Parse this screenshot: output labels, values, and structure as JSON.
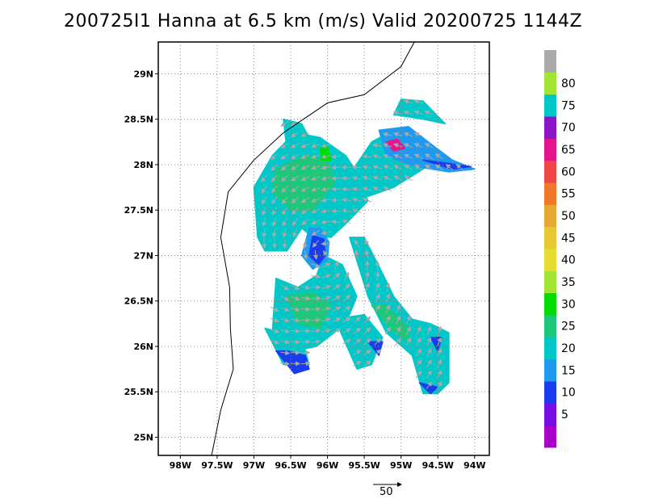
{
  "title": "200725I1 Hanna at 6.5 km (m/s) Valid 20200725 1144Z",
  "map": {
    "lon_range": [
      -98.3,
      -93.8
    ],
    "lat_range": [
      24.8,
      29.35
    ],
    "x_ticks": [
      {
        "lon": -98.0,
        "label": "98W"
      },
      {
        "lon": -97.5,
        "label": "97.5W"
      },
      {
        "lon": -97.0,
        "label": "97W"
      },
      {
        "lon": -96.5,
        "label": "96.5W"
      },
      {
        "lon": -96.0,
        "label": "96W"
      },
      {
        "lon": -95.5,
        "label": "95.5W"
      },
      {
        "lon": -95.0,
        "label": "95W"
      },
      {
        "lon": -94.5,
        "label": "94.5W"
      },
      {
        "lon": -94.0,
        "label": "94W"
      }
    ],
    "y_ticks": [
      {
        "lat": 25.0,
        "label": "25N"
      },
      {
        "lat": 25.5,
        "label": "25.5N"
      },
      {
        "lat": 26.0,
        "label": "26N"
      },
      {
        "lat": 26.5,
        "label": "26.5N"
      },
      {
        "lat": 27.0,
        "label": "27N"
      },
      {
        "lat": 27.5,
        "label": "27.5N"
      },
      {
        "lat": 28.0,
        "label": "28N"
      },
      {
        "lat": 28.5,
        "label": "28.5N"
      },
      {
        "lat": 29.0,
        "label": "29N"
      }
    ],
    "grid": "dotted",
    "coastline": [
      [
        -97.58,
        24.78
      ],
      [
        -97.45,
        25.3
      ],
      [
        -97.28,
        25.75
      ],
      [
        -97.32,
        26.2
      ],
      [
        -97.33,
        26.65
      ],
      [
        -97.45,
        27.2
      ],
      [
        -97.35,
        27.7
      ],
      [
        -97.0,
        28.05
      ],
      [
        -96.6,
        28.35
      ],
      [
        -96.0,
        28.68
      ],
      [
        -95.5,
        28.77
      ],
      [
        -95.0,
        29.08
      ],
      [
        -94.82,
        29.35
      ]
    ]
  },
  "colorbar": {
    "levels": [
      {
        "label": "",
        "color": "#a800c8"
      },
      {
        "label": "5",
        "color": "#7a0ce6"
      },
      {
        "label": "10",
        "color": "#1a3cf0"
      },
      {
        "label": "15",
        "color": "#1e9bf0"
      },
      {
        "label": "20",
        "color": "#00c8c8"
      },
      {
        "label": "25",
        "color": "#1ec87a"
      },
      {
        "label": "30",
        "color": "#00dc00"
      },
      {
        "label": "35",
        "color": "#a0e632"
      },
      {
        "label": "40",
        "color": "#e6dc32"
      },
      {
        "label": "45",
        "color": "#e6c832"
      },
      {
        "label": "50",
        "color": "#e6a830"
      },
      {
        "label": "55",
        "color": "#f07828"
      },
      {
        "label": "60",
        "color": "#f04646"
      },
      {
        "label": "65",
        "color": "#e6148c"
      },
      {
        "label": "70",
        "color": "#8c14c8"
      },
      {
        "label": "75",
        "color": "#00c8c8"
      },
      {
        "label": "80",
        "color": "#a0e632"
      },
      {
        "label": "",
        "color": "#aaaaaa"
      }
    ]
  },
  "reference_vector": {
    "label": "50"
  },
  "wind_field": {
    "center": {
      "lon": -96.05,
      "lat": 27.0
    },
    "colors": {
      "calm": "#1a3cf0",
      "light": "#1e9bf0",
      "moderate": "#00c8c8",
      "strong": "#1ec87a",
      "peak": "#00dc00",
      "extreme": "#e6148c",
      "arrow": "#a9a9a9"
    },
    "regions": [
      {
        "band": "moderate",
        "poly": [
          [
            -96.95,
            27.2
          ],
          [
            -97.0,
            27.75
          ],
          [
            -96.75,
            28.1
          ],
          [
            -96.45,
            28.35
          ],
          [
            -96.1,
            28.3
          ],
          [
            -95.75,
            28.1
          ],
          [
            -95.55,
            27.85
          ],
          [
            -95.45,
            27.6
          ],
          [
            -95.75,
            27.35
          ],
          [
            -95.95,
            27.2
          ],
          [
            -96.2,
            27.2
          ],
          [
            -96.35,
            27.3
          ],
          [
            -96.55,
            27.05
          ],
          [
            -96.85,
            27.05
          ]
        ]
      },
      {
        "band": "moderate",
        "poly": [
          [
            -96.55,
            28.15
          ],
          [
            -96.6,
            28.5
          ],
          [
            -96.35,
            28.45
          ],
          [
            -96.25,
            28.3
          ]
        ]
      },
      {
        "band": "moderate",
        "poly": [
          [
            -95.65,
            27.95
          ],
          [
            -95.4,
            28.25
          ],
          [
            -95.1,
            28.38
          ],
          [
            -94.85,
            28.3
          ],
          [
            -94.55,
            28.1
          ],
          [
            -94.7,
            27.95
          ],
          [
            -95.1,
            27.75
          ],
          [
            -95.45,
            27.65
          ]
        ]
      },
      {
        "band": "light",
        "poly": [
          [
            -95.3,
            28.38
          ],
          [
            -94.9,
            28.42
          ],
          [
            -94.55,
            28.2
          ],
          [
            -94.3,
            28.05
          ],
          [
            -94.0,
            27.95
          ],
          [
            -94.35,
            27.92
          ],
          [
            -94.8,
            27.98
          ],
          [
            -95.2,
            28.1
          ]
        ]
      },
      {
        "band": "moderate",
        "poly": [
          [
            -95.0,
            28.72
          ],
          [
            -94.7,
            28.7
          ],
          [
            -94.4,
            28.45
          ],
          [
            -94.7,
            28.5
          ],
          [
            -95.1,
            28.55
          ]
        ]
      },
      {
        "band": "moderate",
        "poly": [
          [
            -96.7,
            26.75
          ],
          [
            -96.75,
            26.15
          ],
          [
            -96.45,
            25.95
          ],
          [
            -96.15,
            26.0
          ],
          [
            -95.75,
            26.25
          ],
          [
            -95.6,
            26.55
          ],
          [
            -95.8,
            26.9
          ],
          [
            -96.05,
            27.0
          ],
          [
            -96.15,
            26.78
          ],
          [
            -96.4,
            26.65
          ]
        ]
      },
      {
        "band": "moderate",
        "poly": [
          [
            -95.7,
            27.2
          ],
          [
            -95.45,
            26.55
          ],
          [
            -95.2,
            26.15
          ],
          [
            -94.85,
            25.9
          ],
          [
            -94.7,
            25.48
          ],
          [
            -94.5,
            25.48
          ],
          [
            -94.35,
            25.6
          ],
          [
            -94.35,
            26.15
          ],
          [
            -94.6,
            26.25
          ],
          [
            -94.85,
            26.3
          ],
          [
            -95.1,
            26.55
          ],
          [
            -95.25,
            26.8
          ],
          [
            -95.5,
            27.2
          ]
        ]
      },
      {
        "band": "moderate",
        "poly": [
          [
            -95.9,
            26.3
          ],
          [
            -95.6,
            25.75
          ],
          [
            -95.4,
            25.8
          ],
          [
            -95.25,
            26.1
          ],
          [
            -95.5,
            26.35
          ]
        ]
      },
      {
        "band": "moderate",
        "poly": [
          [
            -96.85,
            26.2
          ],
          [
            -96.6,
            25.8
          ],
          [
            -96.25,
            25.8
          ],
          [
            -96.35,
            26.1
          ]
        ]
      },
      {
        "band": "strong",
        "poly": [
          [
            -96.75,
            27.7
          ],
          [
            -96.7,
            27.95
          ],
          [
            -96.3,
            28.1
          ],
          [
            -96.0,
            28.05
          ],
          [
            -95.9,
            27.8
          ],
          [
            -96.2,
            27.5
          ],
          [
            -96.5,
            27.5
          ]
        ]
      },
      {
        "band": "strong",
        "poly": [
          [
            -96.55,
            26.55
          ],
          [
            -96.4,
            26.25
          ],
          [
            -96.1,
            26.2
          ],
          [
            -95.95,
            26.45
          ],
          [
            -96.2,
            26.6
          ]
        ]
      },
      {
        "band": "strong",
        "poly": [
          [
            -95.4,
            26.45
          ],
          [
            -95.15,
            26.2
          ],
          [
            -94.9,
            26.05
          ],
          [
            -94.9,
            26.2
          ],
          [
            -95.2,
            26.45
          ]
        ]
      },
      {
        "band": "light",
        "poly": [
          [
            -96.25,
            27.3
          ],
          [
            -96.35,
            27.0
          ],
          [
            -96.2,
            26.85
          ],
          [
            -96.0,
            26.95
          ],
          [
            -95.98,
            27.15
          ],
          [
            -96.1,
            27.3
          ]
        ]
      },
      {
        "band": "calm",
        "poly": [
          [
            -96.2,
            27.22
          ],
          [
            -96.25,
            27.0
          ],
          [
            -96.12,
            26.9
          ],
          [
            -96.03,
            27.0
          ],
          [
            -96.05,
            27.18
          ]
        ]
      },
      {
        "band": "calm",
        "poly": [
          [
            -96.7,
            25.95
          ],
          [
            -96.45,
            25.7
          ],
          [
            -96.25,
            25.75
          ],
          [
            -96.3,
            25.9
          ],
          [
            -96.55,
            25.95
          ]
        ]
      },
      {
        "band": "calm",
        "poly": [
          [
            -95.45,
            26.05
          ],
          [
            -95.3,
            25.9
          ],
          [
            -95.25,
            26.05
          ]
        ]
      },
      {
        "band": "calm",
        "poly": [
          [
            -94.6,
            26.1
          ],
          [
            -94.5,
            25.95
          ],
          [
            -94.45,
            26.1
          ]
        ]
      },
      {
        "band": "calm",
        "poly": [
          [
            -94.75,
            25.6
          ],
          [
            -94.6,
            25.48
          ],
          [
            -94.5,
            25.55
          ]
        ]
      },
      {
        "band": "calm",
        "poly": [
          [
            -94.7,
            28.05
          ],
          [
            -94.3,
            27.95
          ],
          [
            -94.05,
            27.98
          ],
          [
            -94.4,
            28.02
          ]
        ]
      },
      {
        "band": "extreme",
        "poly": [
          [
            -95.2,
            28.25
          ],
          [
            -95.05,
            28.28
          ],
          [
            -94.95,
            28.18
          ],
          [
            -95.1,
            28.15
          ]
        ]
      },
      {
        "band": "peak",
        "poly": [
          [
            -96.1,
            28.18
          ],
          [
            -96.0,
            28.2
          ],
          [
            -95.95,
            28.05
          ],
          [
            -96.08,
            28.05
          ]
        ]
      }
    ]
  }
}
